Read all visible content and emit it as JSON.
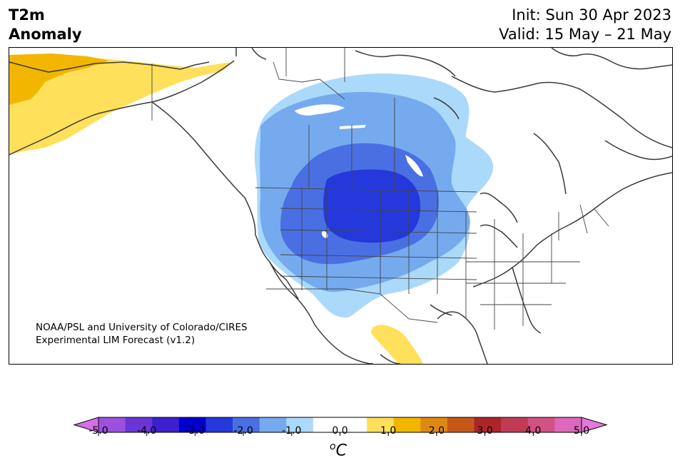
{
  "header": {
    "title_line1": "T2m",
    "title_line2": "Anomaly",
    "init": "Init: Sun 30 Apr 2023",
    "valid": "Valid: 15 May – 21 May"
  },
  "credit": {
    "line1": "NOAA/PSL and University of Colorado/CIRES",
    "line2": "Experimental LIM Forecast (v1.2)"
  },
  "colorbar": {
    "colors": [
      "#d670e6",
      "#9c51dc",
      "#6a35d6",
      "#3d1fd0",
      "#0000cf",
      "#2438db",
      "#4a6fe3",
      "#75aaee",
      "#abd9fa",
      "#ffffff",
      "#ffffff",
      "#ffe05a",
      "#f2b600",
      "#de8a12",
      "#c65719",
      "#ad2528",
      "#c13b55",
      "#d25286",
      "#dd69bc",
      "#e478db"
    ],
    "tick_labels": [
      "-5.0",
      "-4.0",
      "-3.0",
      "-2.0",
      "-1.0",
      "0.0",
      "1.0",
      "2.0",
      "3.0",
      "4.0",
      "5.0"
    ],
    "unit_base": "C",
    "unit_sup": "o"
  },
  "legend_colors": {
    "anom_neg1": "#abd9fa",
    "anom_neg1_5": "#75aaee",
    "anom_neg2": "#4a6fe3",
    "anom_neg2_5": "#2438db",
    "anom_pos0_5": "#ffe05a",
    "anom_pos1": "#f2b600",
    "coast": "#3a3a3a"
  }
}
